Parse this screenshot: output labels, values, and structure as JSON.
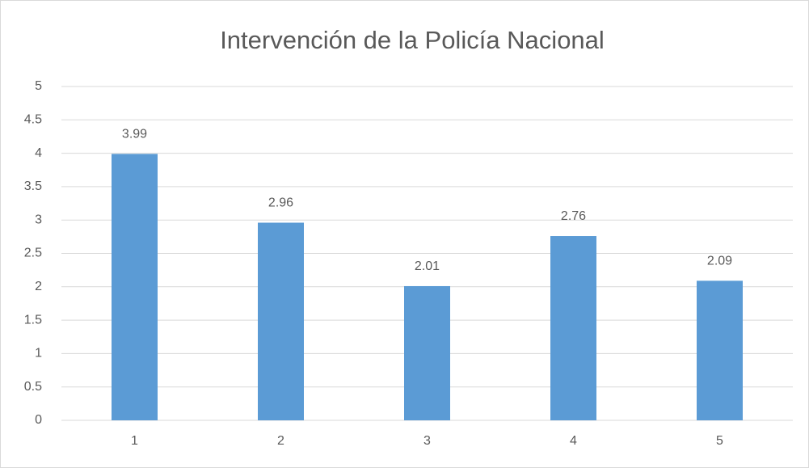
{
  "chart_data": {
    "type": "bar",
    "title": "Intervención de la Policía Nacional",
    "categories": [
      "1",
      "2",
      "3",
      "4",
      "5"
    ],
    "values": [
      3.99,
      2.96,
      2.01,
      2.76,
      2.09
    ],
    "color": "#5b9bd5",
    "ylim": [
      0,
      5
    ],
    "yticks": [
      0,
      0.5,
      1,
      1.5,
      2,
      2.5,
      3,
      3.5,
      4,
      4.5,
      5
    ],
    "grid": true,
    "data_labels": true
  }
}
